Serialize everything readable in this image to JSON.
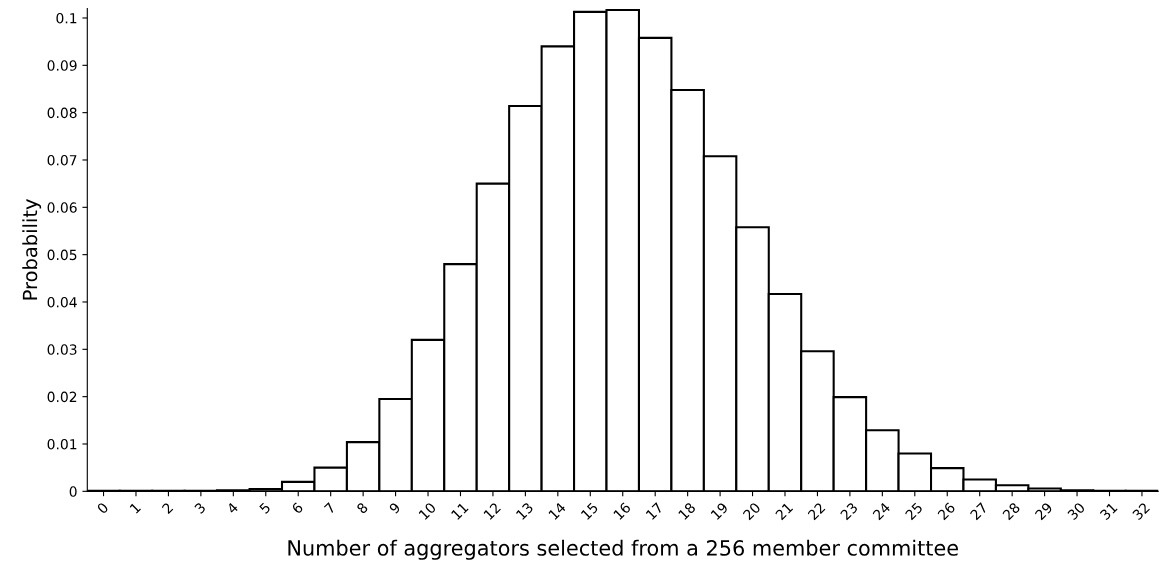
{
  "chart_data": {
    "type": "bar",
    "xlabel": "Number of aggregators selected from a 256 member committee",
    "ylabel": "Probability",
    "categories": [
      "0",
      "1",
      "2",
      "3",
      "4",
      "5",
      "6",
      "7",
      "8",
      "9",
      "10",
      "11",
      "12",
      "13",
      "14",
      "15",
      "16",
      "17",
      "18",
      "19",
      "20",
      "21",
      "22",
      "23",
      "24",
      "25",
      "26",
      "27",
      "28",
      "29",
      "30",
      "31",
      "32"
    ],
    "values": [
      0.0001,
      0.0001,
      0.0001,
      0.0001,
      0.0002,
      0.0005,
      0.002,
      0.005,
      0.0104,
      0.0195,
      0.032,
      0.048,
      0.065,
      0.0814,
      0.094,
      0.1013,
      0.1017,
      0.0958,
      0.0848,
      0.0708,
      0.0558,
      0.0417,
      0.0296,
      0.0199,
      0.0129,
      0.008,
      0.0049,
      0.0025,
      0.0013,
      0.0006,
      0.0002,
      0.0001,
      0.0001
    ],
    "color": "#ffffff",
    "ylim": [
      0,
      0.102
    ],
    "yticks": [
      0,
      0.01,
      0.02,
      0.03,
      0.04,
      0.05,
      0.06,
      0.07,
      0.08,
      0.09,
      0.1
    ],
    "grid": false,
    "legend": false
  }
}
